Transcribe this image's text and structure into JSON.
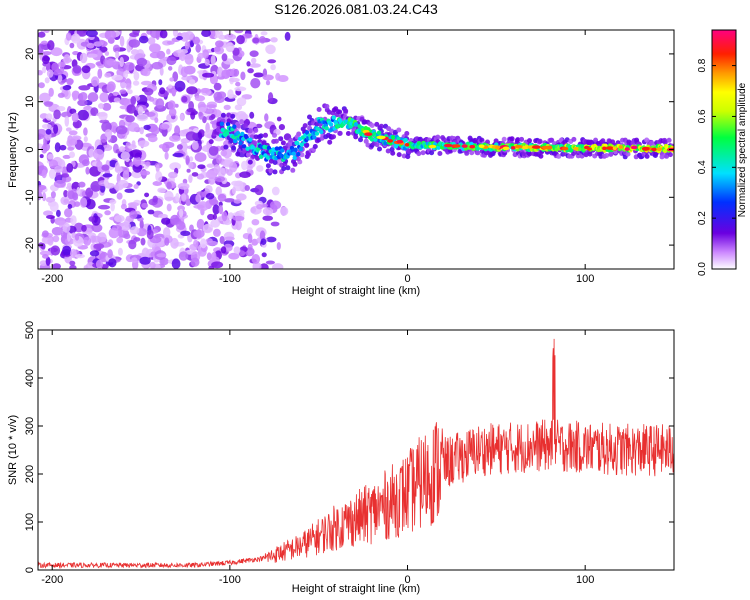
{
  "chart_data": [
    {
      "type": "heatmap",
      "title": "S126.2026.081.03.24.C43",
      "xlabel": "Height of straight line (km)",
      "ylabel": "Frequency (Hz)",
      "xlim": [
        -208,
        150
      ],
      "ylim": [
        -25,
        25
      ],
      "xticks": [
        -200,
        -100,
        0,
        100
      ],
      "yticks": [
        -20,
        -10,
        0,
        10,
        20
      ],
      "colorbar": {
        "label": "Normalized spectral amplitude",
        "range": [
          0,
          0.94
        ],
        "ticks": [
          0.0,
          0.2,
          0.4,
          0.6,
          0.8
        ]
      },
      "ridge": {
        "description_points_x": [
          -100,
          -80,
          -65,
          -50,
          -35,
          -20,
          0,
          50,
          100,
          150
        ],
        "description_points_freq": [
          4,
          -1,
          -1,
          5,
          6,
          3,
          1,
          0.5,
          0.3,
          0.2
        ],
        "peak_amplitude_x_range": [
          -20,
          150
        ]
      },
      "noise_region_x": [
        -208,
        -75
      ]
    },
    {
      "type": "line",
      "xlabel": "Height of straight line (km)",
      "ylabel": "SNR (10 * v/v)",
      "xlim": [
        -208,
        150
      ],
      "ylim": [
        0,
        500
      ],
      "xticks": [
        -200,
        -100,
        0,
        100
      ],
      "yticks": [
        0,
        100,
        200,
        300,
        400,
        500
      ],
      "series": [
        {
          "name": "SNR",
          "color": "#e83030",
          "trend_x": [
            -208,
            -120,
            -100,
            -80,
            -60,
            -40,
            -20,
            0,
            20,
            40,
            60,
            80,
            100,
            120,
            150
          ],
          "trend_y": [
            10,
            10,
            15,
            25,
            50,
            90,
            120,
            160,
            220,
            250,
            255,
            260,
            255,
            250,
            250
          ]
        }
      ]
    }
  ]
}
